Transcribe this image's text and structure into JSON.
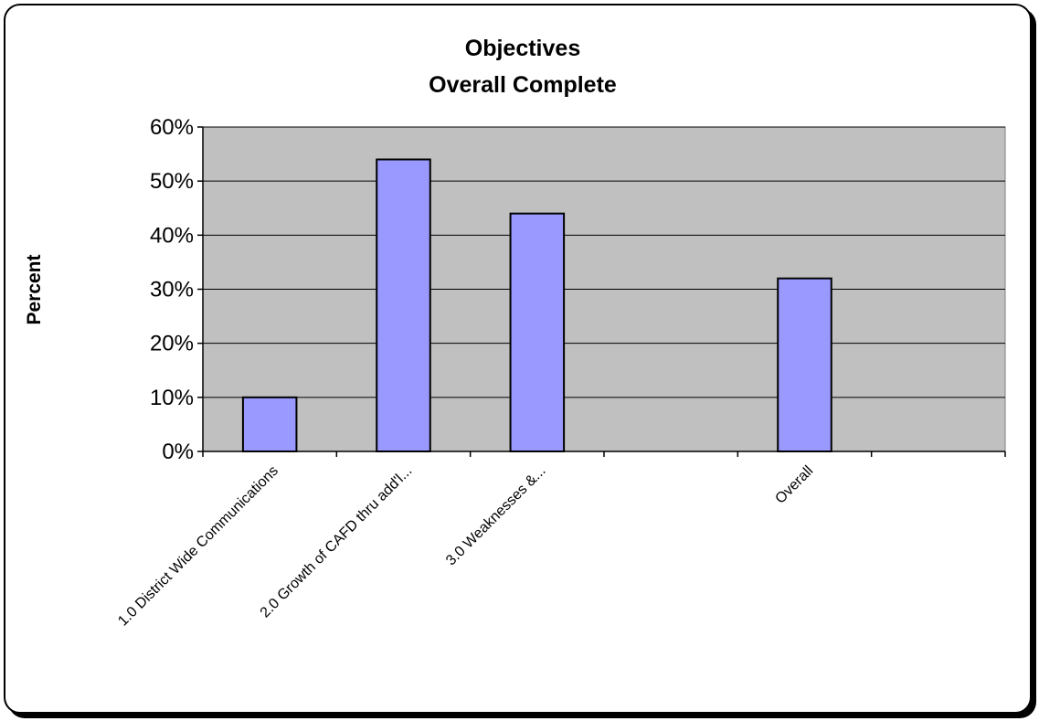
{
  "chart_data": {
    "type": "bar",
    "title_lines": [
      "Objectives",
      "Overall Complete"
    ],
    "xlabel": "",
    "ylabel": "Percent",
    "categories": [
      "1.0 District Wide Communications",
      "2.0  Growth of CAFD thru add'l...",
      "3.0 Weaknesses &...",
      "",
      "Overall",
      ""
    ],
    "values": [
      0.1,
      0.54,
      0.44,
      null,
      0.32,
      null
    ],
    "ylim": [
      0,
      0.6
    ],
    "yticks": [
      0,
      0.1,
      0.2,
      0.3,
      0.4,
      0.5,
      0.6
    ],
    "ytick_labels": [
      "0%",
      "10%",
      "20%",
      "30%",
      "40%",
      "50%",
      "60%"
    ],
    "grid": true,
    "legend": "none",
    "colors": {
      "bar_fill": "#9999ff",
      "plot_bg": "#c0c0c0",
      "grid": "#000000"
    }
  }
}
